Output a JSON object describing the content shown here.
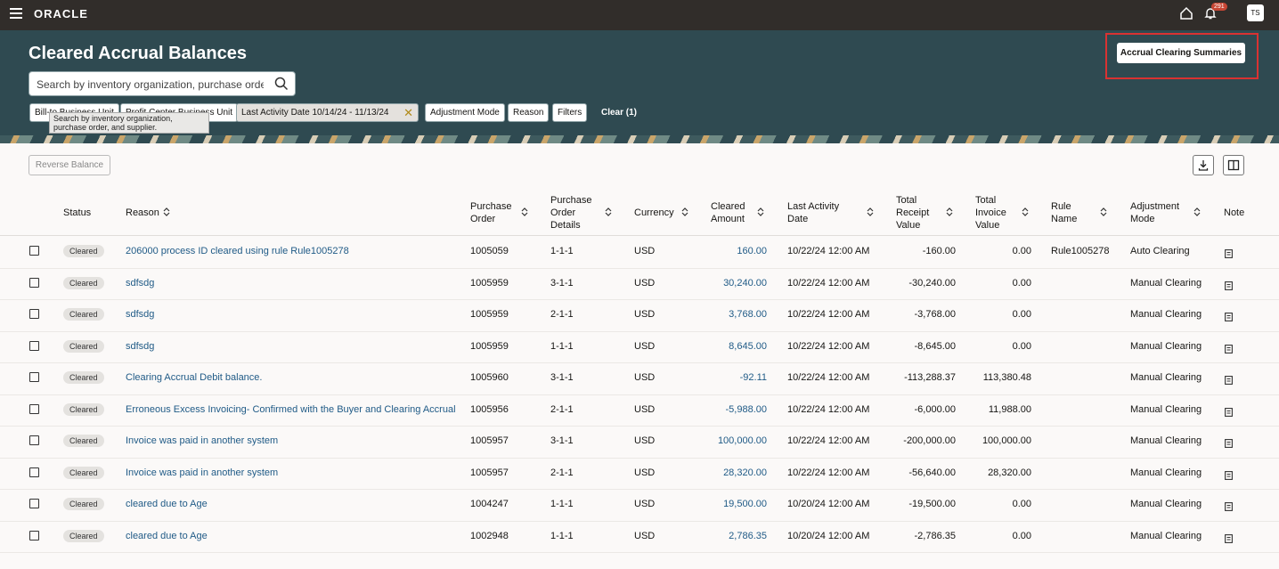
{
  "header": {
    "brand": "ORACLE",
    "notification_count": "291",
    "avatar": "TS"
  },
  "page": {
    "title": "Cleared Accrual Balances",
    "search_placeholder": "Search by inventory organization, purchase order, and supplier.",
    "search_tooltip": "Search by inventory organization, purchase order, and supplier.",
    "summaries_button": "Accrual Clearing Summaries",
    "filters": [
      "Bill-to Business Unit",
      "Profit Center Business Unit",
      "Last Activity Date 10/14/24 - 11/13/24",
      "Adjustment Mode",
      "Reason",
      "Filters"
    ],
    "clear": "Clear (1)",
    "reverse_button": "Reverse Balance"
  },
  "table": {
    "columns": [
      "Status",
      "Reason",
      "Purchase Order",
      "Purchase Order Details",
      "Currency",
      "Cleared Amount",
      "Last Activity Date",
      "Total Receipt Value",
      "Total Invoice Value",
      "Rule Name",
      "Adjustment Mode",
      "Note"
    ],
    "rows": [
      [
        "Cleared",
        "206000 process ID cleared using rule Rule1005278",
        "1005059",
        "1-1-1",
        "USD",
        "160.00",
        "10/22/24 12:00 AM",
        "-160.00",
        "0.00",
        "Rule1005278",
        "Auto Clearing"
      ],
      [
        "Cleared",
        "sdfsdg",
        "1005959",
        "3-1-1",
        "USD",
        "30,240.00",
        "10/22/24 12:00 AM",
        "-30,240.00",
        "0.00",
        null,
        "Manual Clearing"
      ],
      [
        "Cleared",
        "sdfsdg",
        "1005959",
        "2-1-1",
        "USD",
        "3,768.00",
        "10/22/24 12:00 AM",
        "-3,768.00",
        "0.00",
        null,
        "Manual Clearing"
      ],
      [
        "Cleared",
        "sdfsdg",
        "1005959",
        "1-1-1",
        "USD",
        "8,645.00",
        "10/22/24 12:00 AM",
        "-8,645.00",
        "0.00",
        null,
        "Manual Clearing"
      ],
      [
        "Cleared",
        "Clearing Accrual Debit balance.",
        "1005960",
        "3-1-1",
        "USD",
        "-92.11",
        "10/22/24 12:00 AM",
        "-113,288.37",
        "113,380.48",
        null,
        "Manual Clearing"
      ],
      [
        "Cleared",
        "Erroneous Excess Invoicing- Confirmed with the Buyer and Clearing Accrual",
        "1005956",
        "2-1-1",
        "USD",
        "-5,988.00",
        "10/22/24 12:00 AM",
        "-6,000.00",
        "11,988.00",
        null,
        "Manual Clearing"
      ],
      [
        "Cleared",
        "Invoice was paid in another system",
        "1005957",
        "3-1-1",
        "USD",
        "100,000.00",
        "10/22/24 12:00 AM",
        "-200,000.00",
        "100,000.00",
        null,
        "Manual Clearing"
      ],
      [
        "Cleared",
        "Invoice was paid in another system",
        "1005957",
        "2-1-1",
        "USD",
        "28,320.00",
        "10/22/24 12:00 AM",
        "-56,640.00",
        "28,320.00",
        null,
        "Manual Clearing"
      ],
      [
        "Cleared",
        "cleared due to Age",
        "1004247",
        "1-1-1",
        "USD",
        "19,500.00",
        "10/20/24 12:00 AM",
        "-19,500.00",
        "0.00",
        null,
        "Manual Clearing"
      ],
      [
        "Cleared",
        "cleared due to Age",
        "1002948",
        "1-1-1",
        "USD",
        "2,786.35",
        "10/20/24 12:00 AM",
        "-2,786.35",
        "0.00",
        null,
        "Manual Clearing"
      ]
    ]
  }
}
